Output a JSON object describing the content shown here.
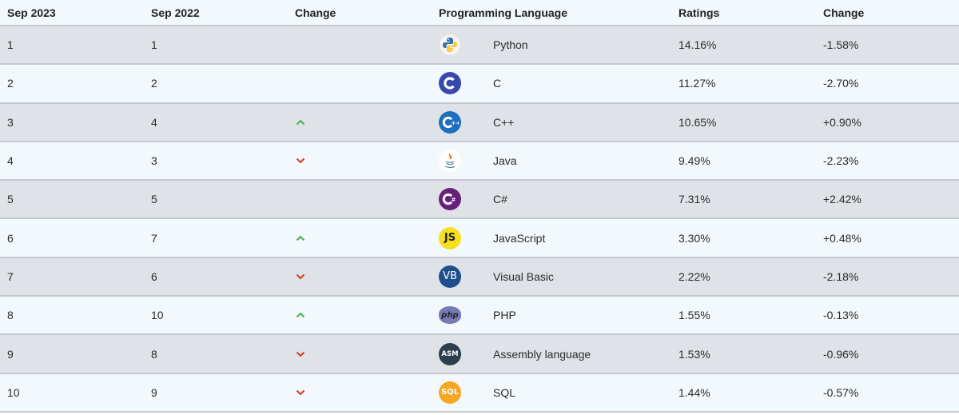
{
  "header": {
    "col_current": "Sep 2023",
    "col_previous": "Sep 2022",
    "col_change": "Change",
    "col_language": "Programming Language",
    "col_ratings": "Ratings",
    "col_rating_change": "Change"
  },
  "colors": {
    "up": "#4caf50",
    "down": "#d9381e",
    "row_odd": "#dfe3e7",
    "row_even": "#f3f8fc"
  },
  "rows": [
    {
      "current": "1",
      "previous": "1",
      "trend": "none",
      "language": "Python",
      "icon": "python-logo-icon",
      "rating": "14.16%",
      "change": "-1.58%"
    },
    {
      "current": "2",
      "previous": "2",
      "trend": "none",
      "language": "C",
      "icon": "c-logo-icon",
      "rating": "11.27%",
      "change": "-2.70%"
    },
    {
      "current": "3",
      "previous": "4",
      "trend": "up",
      "language": "C++",
      "icon": "cpp-logo-icon",
      "rating": "10.65%",
      "change": "+0.90%"
    },
    {
      "current": "4",
      "previous": "3",
      "trend": "down",
      "language": "Java",
      "icon": "java-logo-icon",
      "rating": "9.49%",
      "change": "-2.23%"
    },
    {
      "current": "5",
      "previous": "5",
      "trend": "none",
      "language": "C#",
      "icon": "csharp-logo-icon",
      "rating": "7.31%",
      "change": "+2.42%"
    },
    {
      "current": "6",
      "previous": "7",
      "trend": "up",
      "language": "JavaScript",
      "icon": "javascript-logo-icon",
      "rating": "3.30%",
      "change": "+0.48%"
    },
    {
      "current": "7",
      "previous": "6",
      "trend": "down",
      "language": "Visual Basic",
      "icon": "visual-basic-logo-icon",
      "rating": "2.22%",
      "change": "-2.18%"
    },
    {
      "current": "8",
      "previous": "10",
      "trend": "up",
      "language": "PHP",
      "icon": "php-logo-icon",
      "rating": "1.55%",
      "change": "-0.13%"
    },
    {
      "current": "9",
      "previous": "8",
      "trend": "down",
      "language": "Assembly language",
      "icon": "assembly-logo-icon",
      "rating": "1.53%",
      "change": "-0.96%"
    },
    {
      "current": "10",
      "previous": "9",
      "trend": "down",
      "language": "SQL",
      "icon": "sql-logo-icon",
      "rating": "1.44%",
      "change": "-0.57%"
    }
  ]
}
